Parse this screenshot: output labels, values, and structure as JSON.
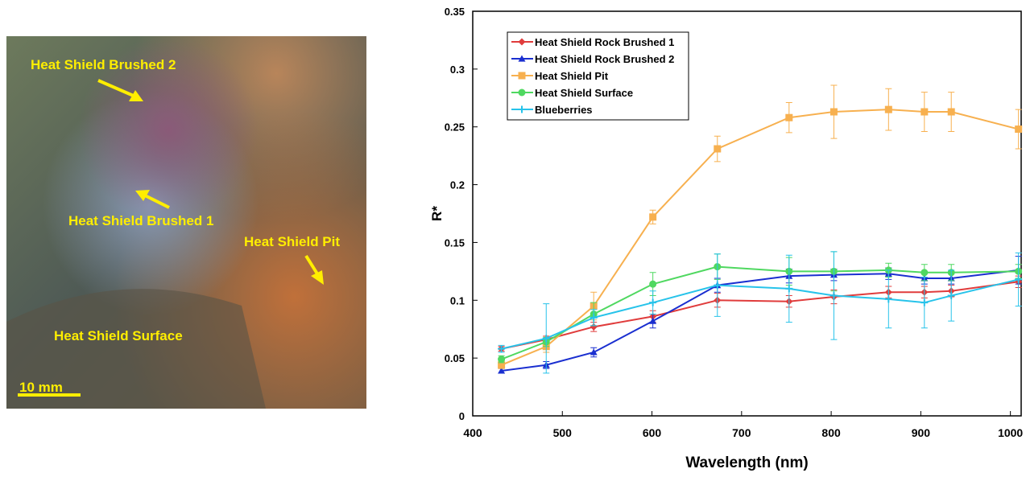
{
  "image_panel": {
    "labels": [
      "Heat Shield Brushed 2",
      "Heat Shield Brushed 1",
      "Heat Shield Pit",
      "Heat Shield Surface"
    ],
    "scale_bar": "10 mm"
  },
  "chart_data": {
    "type": "line",
    "x_label": "Wavelength (nm)",
    "y_label": "R*",
    "x": [
      432,
      482,
      535,
      601,
      673,
      753,
      803,
      864,
      904,
      934,
      1009
    ],
    "xlim": [
      400,
      1012
    ],
    "xticks": [
      400,
      500,
      600,
      700,
      800,
      900,
      1000
    ],
    "ylim": [
      0,
      0.35
    ],
    "yticks": [
      0,
      0.05,
      0.1,
      0.15,
      0.2,
      0.25,
      0.3,
      0.35
    ],
    "legend": "top-left",
    "series": [
      {
        "name": "Heat Shield Rock Brushed 1",
        "color": "#e03c3c",
        "marker": "diamond",
        "values": [
          0.058,
          0.066,
          0.077,
          0.086,
          0.1,
          0.099,
          0.103,
          0.107,
          0.107,
          0.108,
          0.116
        ],
        "errors": [
          0.002,
          0.003,
          0.004,
          0.005,
          0.006,
          0.005,
          0.006,
          0.005,
          0.005,
          0.005,
          0.005
        ]
      },
      {
        "name": "Heat Shield Rock Brushed 2",
        "color": "#1a2fd0",
        "marker": "triangle",
        "values": [
          0.039,
          0.044,
          0.055,
          0.082,
          0.113,
          0.121,
          0.122,
          0.123,
          0.119,
          0.119,
          0.126
        ],
        "errors": [
          0.002,
          0.003,
          0.004,
          0.006,
          0.006,
          0.006,
          0.005,
          0.005,
          0.005,
          0.005,
          0.012
        ]
      },
      {
        "name": "Heat Shield Pit",
        "color": "#f7b04f",
        "marker": "square",
        "values": [
          0.044,
          0.06,
          0.095,
          0.172,
          0.231,
          0.258,
          0.263,
          0.265,
          0.263,
          0.263,
          0.248
        ],
        "errors": [
          0.003,
          0.005,
          0.012,
          0.006,
          0.011,
          0.013,
          0.023,
          0.018,
          0.017,
          0.017,
          0.017
        ]
      },
      {
        "name": "Heat Shield Surface",
        "color": "#4fd860",
        "marker": "circle",
        "values": [
          0.049,
          0.064,
          0.088,
          0.114,
          0.129,
          0.125,
          0.125,
          0.126,
          0.124,
          0.124,
          0.125
        ],
        "errors": [
          0.003,
          0.004,
          0.01,
          0.01,
          0.011,
          0.012,
          0.017,
          0.006,
          0.007,
          0.007,
          0.006
        ]
      },
      {
        "name": "Blueberries",
        "color": "#27c3ea",
        "marker": "cross",
        "values": [
          0.058,
          0.067,
          0.085,
          0.098,
          0.113,
          0.11,
          0.104,
          0.101,
          0.098,
          0.104,
          0.118
        ],
        "errors": [
          0.003,
          0.03,
          0.007,
          0.01,
          0.027,
          0.029,
          0.038,
          0.025,
          0.022,
          0.022,
          0.023
        ]
      }
    ]
  }
}
